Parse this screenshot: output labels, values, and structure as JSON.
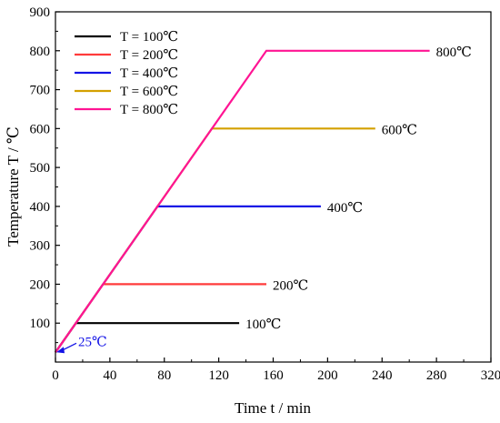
{
  "chart_data": {
    "type": "line",
    "title": "",
    "xlabel": "Time t / min",
    "ylabel": "Temperature T / ℃",
    "xlim": [
      0,
      320
    ],
    "ylim": [
      0,
      900
    ],
    "xticks": [
      0,
      40,
      80,
      120,
      160,
      200,
      240,
      280,
      320
    ],
    "yticks": [
      100,
      200,
      300,
      400,
      500,
      600,
      700,
      800,
      900
    ],
    "grid": false,
    "legend_position": "top-left",
    "series": [
      {
        "name": "T = 100℃",
        "color": "#000000",
        "points": [
          [
            0,
            25
          ],
          [
            15,
            100
          ],
          [
            135,
            100
          ]
        ],
        "end_label": "100℃"
      },
      {
        "name": "T = 200℃",
        "color": "#ff3b3b",
        "points": [
          [
            0,
            25
          ],
          [
            35,
            200
          ],
          [
            155,
            200
          ]
        ],
        "end_label": "200℃"
      },
      {
        "name": "T = 400℃",
        "color": "#1414e6",
        "points": [
          [
            0,
            25
          ],
          [
            75,
            400
          ],
          [
            195,
            400
          ]
        ],
        "end_label": "400℃"
      },
      {
        "name": "T = 600℃",
        "color": "#d4a000",
        "points": [
          [
            0,
            25
          ],
          [
            115,
            600
          ],
          [
            235,
            600
          ]
        ],
        "end_label": "600℃"
      },
      {
        "name": "T = 800℃",
        "color": "#ff1493",
        "points": [
          [
            0,
            25
          ],
          [
            155,
            800
          ],
          [
            275,
            800
          ]
        ],
        "end_label": "800℃"
      }
    ],
    "annotations": [
      {
        "text": "25℃",
        "color": "#1414e6",
        "x": 0,
        "y": 25
      }
    ]
  }
}
